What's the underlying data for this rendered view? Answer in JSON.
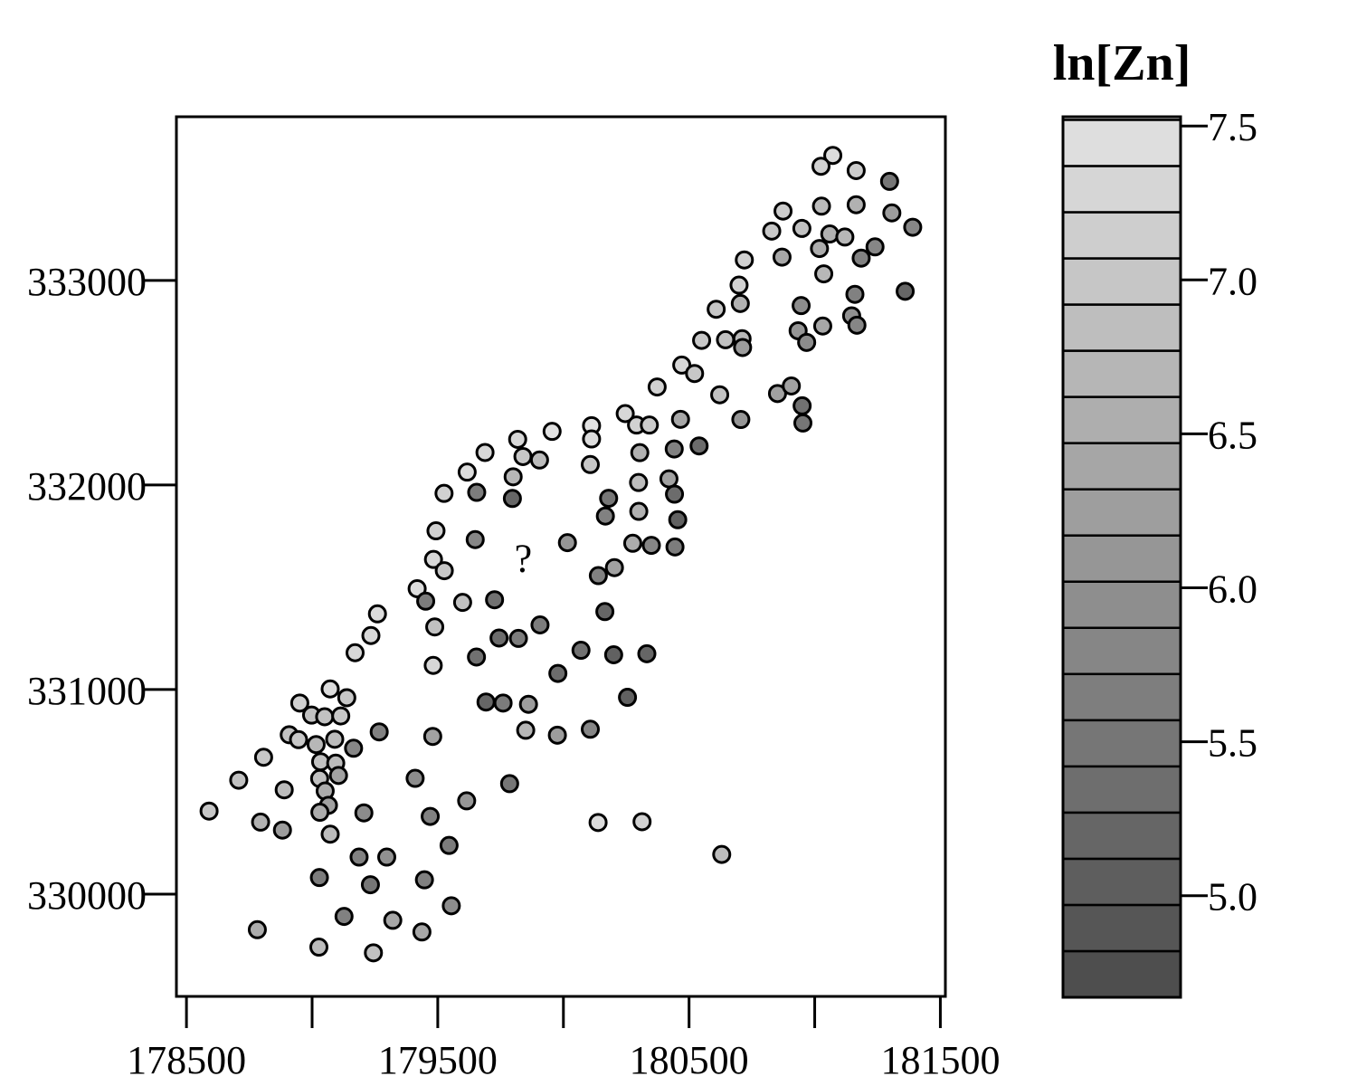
{
  "chart_data": {
    "type": "scatter",
    "title": "",
    "xlabel": "",
    "ylabel": "",
    "xlim": [
      178460,
      181520
    ],
    "ylim": [
      329500,
      333800
    ],
    "x_ticks": [
      {
        "value": 178500,
        "label": "178500"
      },
      {
        "value": 179000,
        "label": ""
      },
      {
        "value": 179500,
        "label": "179500"
      },
      {
        "value": 180000,
        "label": ""
      },
      {
        "value": 180500,
        "label": "180500"
      },
      {
        "value": 181000,
        "label": ""
      },
      {
        "value": 181500,
        "label": "181500"
      }
    ],
    "y_ticks": [
      {
        "value": 330000,
        "label": "330000"
      },
      {
        "value": 331000,
        "label": "331000"
      },
      {
        "value": 332000,
        "label": "332000"
      },
      {
        "value": 333000,
        "label": "333000"
      }
    ],
    "annotation": {
      "text": "?",
      "x": 179840,
      "y": 331640
    },
    "legend": {
      "title": "ln[Zn]",
      "placement": "right",
      "range": [
        4.67,
        7.53
      ],
      "break_step": 0.15,
      "ticks": [
        {
          "value": 5.0,
          "label": "5.0"
        },
        {
          "value": 5.5,
          "label": "5.5"
        },
        {
          "value": 6.0,
          "label": "6.0"
        },
        {
          "value": 6.5,
          "label": "6.5"
        },
        {
          "value": 7.0,
          "label": "7.0"
        },
        {
          "value": 7.5,
          "label": "7.5"
        }
      ]
    },
    "colors": {
      "low": "#4a4a4a",
      "high": "#e3e3e3",
      "stroke": "#000000"
    },
    "points": [
      [
        181072,
        333611,
        7.4
      ],
      [
        181025,
        333558,
        7.2
      ],
      [
        181165,
        333537,
        7.1
      ],
      [
        181298,
        333484,
        5.5
      ],
      [
        181307,
        333330,
        6.2
      ],
      [
        181390,
        333260,
        5.8
      ],
      [
        181165,
        333370,
        6.6
      ],
      [
        181027,
        333363,
        6.8
      ],
      [
        180874,
        333339,
        7.1
      ],
      [
        180829,
        333241,
        7.0
      ],
      [
        180949,
        333254,
        6.9
      ],
      [
        181060,
        333227,
        6.6
      ],
      [
        181120,
        333212,
        6.7
      ],
      [
        181240,
        333164,
        5.8
      ],
      [
        181019,
        333156,
        6.5
      ],
      [
        181185,
        333109,
        5.7
      ],
      [
        180870,
        333114,
        6.4
      ],
      [
        180720,
        333100,
        7.2
      ],
      [
        181036,
        333032,
        6.7
      ],
      [
        180699,
        332977,
        7.2
      ],
      [
        181160,
        332932,
        5.7
      ],
      [
        181360,
        332947,
        5.2
      ],
      [
        180946,
        332877,
        5.9
      ],
      [
        180704,
        332887,
        6.6
      ],
      [
        180608,
        332859,
        7.0
      ],
      [
        181147,
        332827,
        6.0
      ],
      [
        181168,
        332781,
        5.8
      ],
      [
        181032,
        332777,
        6.4
      ],
      [
        180934,
        332754,
        6.1
      ],
      [
        180968,
        332697,
        5.9
      ],
      [
        180550,
        332707,
        7.0
      ],
      [
        180645,
        332710,
        6.9
      ],
      [
        180711,
        332715,
        6.7
      ],
      [
        180713,
        332672,
        6.2
      ],
      [
        180471,
        332586,
        7.3
      ],
      [
        180522,
        332545,
        7.0
      ],
      [
        180373,
        332479,
        7.2
      ],
      [
        180852,
        332447,
        6.3
      ],
      [
        180622,
        332441,
        6.9
      ],
      [
        180907,
        332484,
        6.3
      ],
      [
        180950,
        332387,
        5.4
      ],
      [
        180953,
        332303,
        5.5
      ],
      [
        180706,
        332320,
        6.1
      ],
      [
        180246,
        332349,
        7.3
      ],
      [
        180291,
        332293,
        7.2
      ],
      [
        180342,
        332293,
        7.1
      ],
      [
        180466,
        332321,
        6.4
      ],
      [
        180112,
        332290,
        7.5
      ],
      [
        179955,
        332262,
        7.5
      ],
      [
        180112,
        332225,
        7.4
      ],
      [
        179818,
        332223,
        7.3
      ],
      [
        180441,
        332176,
        5.7
      ],
      [
        180540,
        332191,
        5.3
      ],
      [
        179688,
        332159,
        7.3
      ],
      [
        180304,
        332158,
        6.6
      ],
      [
        179839,
        332139,
        7.0
      ],
      [
        179905,
        332122,
        6.8
      ],
      [
        180107,
        332100,
        7.0
      ],
      [
        179617,
        332063,
        7.4
      ],
      [
        179800,
        332040,
        6.7
      ],
      [
        180420,
        332030,
        6.3
      ],
      [
        180299,
        332012,
        6.8
      ],
      [
        179525,
        331959,
        7.2
      ],
      [
        179655,
        331964,
        5.6
      ],
      [
        180442,
        331955,
        5.3
      ],
      [
        179797,
        331934,
        5.2
      ],
      [
        180180,
        331935,
        5.5
      ],
      [
        180300,
        331871,
        6.6
      ],
      [
        180167,
        331848,
        5.7
      ],
      [
        180455,
        331830,
        5.1
      ],
      [
        179493,
        331776,
        7.2
      ],
      [
        179649,
        331733,
        5.8
      ],
      [
        180016,
        331718,
        6.1
      ],
      [
        180276,
        331715,
        6.5
      ],
      [
        180350,
        331705,
        5.8
      ],
      [
        180444,
        331697,
        5.6
      ],
      [
        179483,
        331636,
        7.3
      ],
      [
        179526,
        331581,
        7.0
      ],
      [
        180203,
        331596,
        6.3
      ],
      [
        180139,
        331557,
        5.7
      ],
      [
        179418,
        331493,
        7.4
      ],
      [
        179452,
        331432,
        5.6
      ],
      [
        179599,
        331426,
        6.9
      ],
      [
        179726,
        331439,
        5.4
      ],
      [
        180165,
        331381,
        5.2
      ],
      [
        179260,
        331370,
        7.4
      ],
      [
        179488,
        331306,
        6.9
      ],
      [
        179907,
        331316,
        5.6
      ],
      [
        179171,
        331180,
        7.3
      ],
      [
        179234,
        331264,
        7.3
      ],
      [
        179744,
        331252,
        5.3
      ],
      [
        179821,
        331250,
        5.6
      ],
      [
        180070,
        331192,
        5.4
      ],
      [
        180200,
        331170,
        5.1
      ],
      [
        180332,
        331175,
        5.2
      ],
      [
        179482,
        331118,
        7.3
      ],
      [
        179654,
        331159,
        5.4
      ],
      [
        179978,
        331079,
        5.3
      ],
      [
        179072,
        331003,
        7.4
      ],
      [
        179138,
        330960,
        7.0
      ],
      [
        178951,
        330934,
        7.2
      ],
      [
        178998,
        330875,
        6.9
      ],
      [
        179050,
        330867,
        6.9
      ],
      [
        179114,
        330871,
        7.0
      ],
      [
        180255,
        330962,
        5.1
      ],
      [
        179692,
        330939,
        5.2
      ],
      [
        179760,
        330934,
        5.6
      ],
      [
        179861,
        330928,
        6.2
      ],
      [
        179267,
        330793,
        5.7
      ],
      [
        178909,
        330779,
        6.9
      ],
      [
        178946,
        330755,
        7.0
      ],
      [
        179090,
        330757,
        6.8
      ],
      [
        179016,
        330731,
        6.7
      ],
      [
        179165,
        330713,
        5.8
      ],
      [
        179480,
        330771,
        6.3
      ],
      [
        179850,
        330801,
        6.7
      ],
      [
        179976,
        330777,
        6.2
      ],
      [
        180107,
        330806,
        5.8
      ],
      [
        178807,
        330669,
        7.0
      ],
      [
        179034,
        330647,
        6.9
      ],
      [
        179094,
        330640,
        6.8
      ],
      [
        178708,
        330557,
        6.9
      ],
      [
        179030,
        330565,
        6.9
      ],
      [
        179105,
        330580,
        6.3
      ],
      [
        179410,
        330566,
        5.9
      ],
      [
        179786,
        330540,
        5.5
      ],
      [
        178889,
        330510,
        6.8
      ],
      [
        179052,
        330504,
        6.5
      ],
      [
        179065,
        330434,
        6.3
      ],
      [
        178590,
        330406,
        7.0
      ],
      [
        179031,
        330400,
        6.5
      ],
      [
        179206,
        330397,
        5.9
      ],
      [
        179470,
        330380,
        5.7
      ],
      [
        179615,
        330456,
        6.1
      ],
      [
        178795,
        330352,
        6.6
      ],
      [
        178882,
        330313,
        6.2
      ],
      [
        179072,
        330293,
        6.8
      ],
      [
        180138,
        330350,
        7.4
      ],
      [
        180313,
        330354,
        7.2
      ],
      [
        179545,
        330238,
        5.6
      ],
      [
        179187,
        330181,
        5.7
      ],
      [
        179297,
        330181,
        6.0
      ],
      [
        180630,
        330194,
        6.8
      ],
      [
        179029,
        330081,
        5.6
      ],
      [
        179447,
        330070,
        5.7
      ],
      [
        179232,
        330046,
        5.5
      ],
      [
        179554,
        329943,
        5.9
      ],
      [
        179127,
        329891,
        5.7
      ],
      [
        179321,
        329872,
        6.4
      ],
      [
        178782,
        329826,
        6.5
      ],
      [
        179437,
        329815,
        6.4
      ],
      [
        179027,
        329741,
        6.8
      ],
      [
        179244,
        329713,
        6.9
      ]
    ]
  }
}
